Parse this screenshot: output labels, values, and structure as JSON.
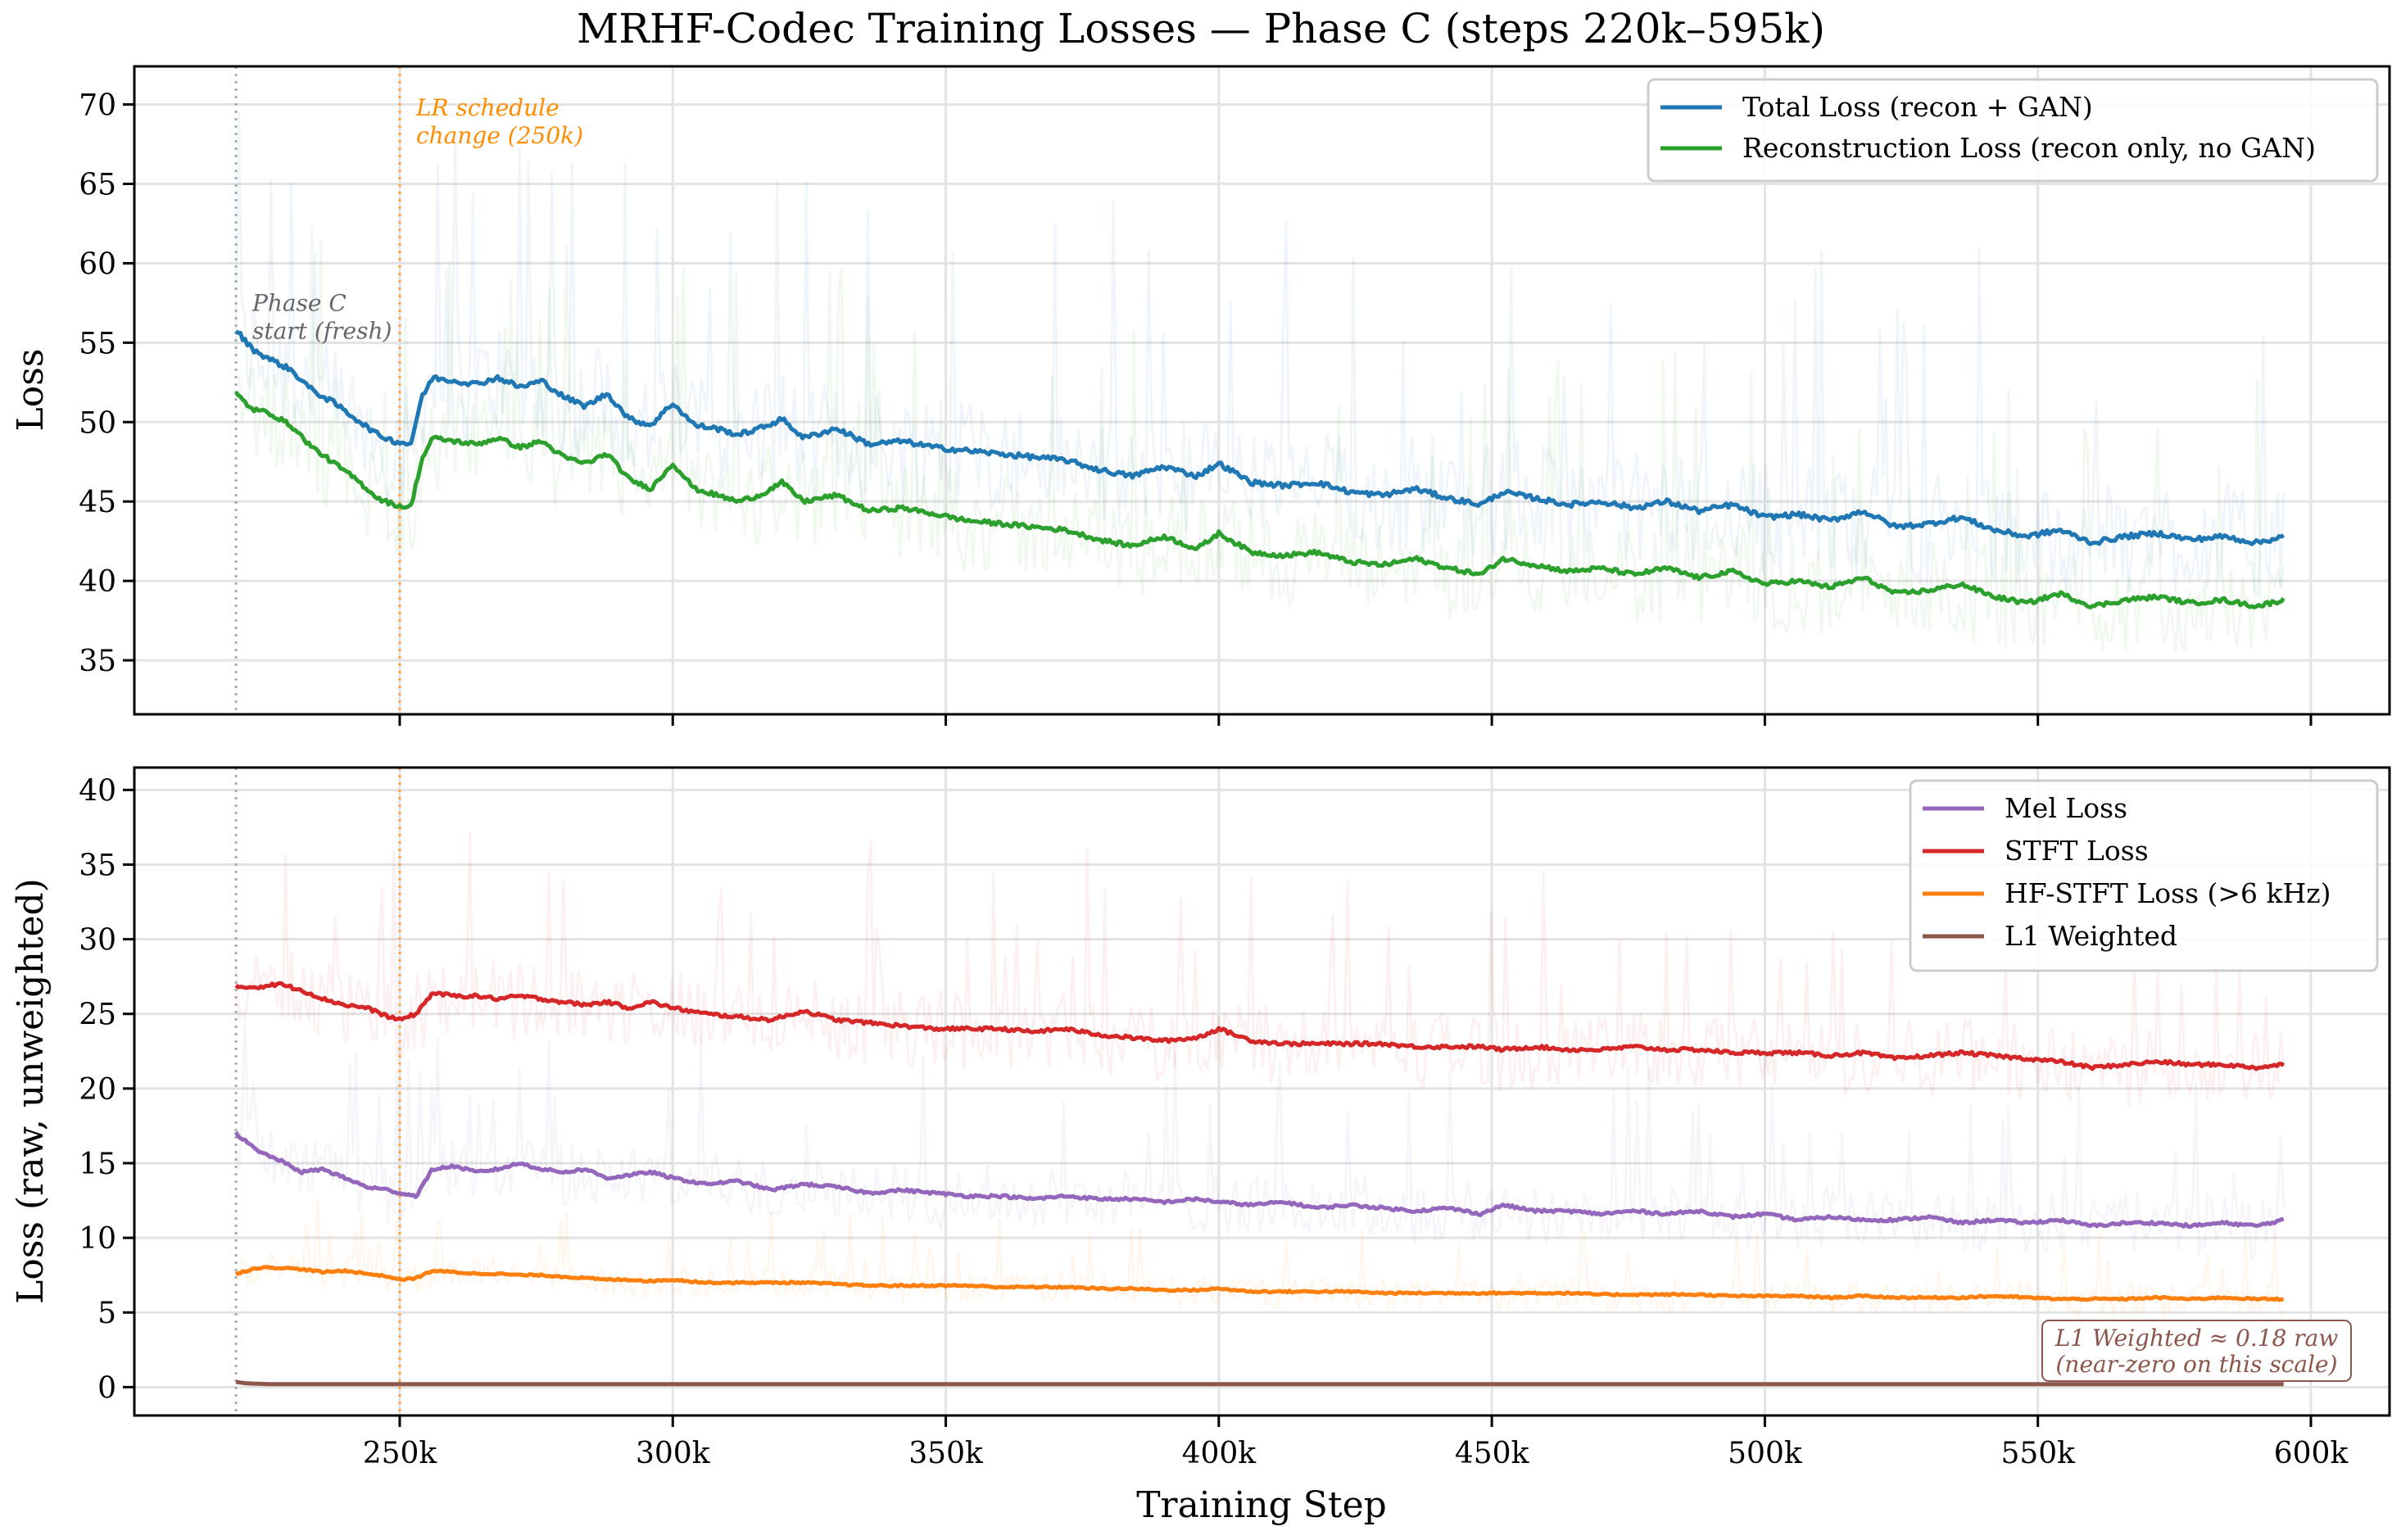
{
  "chart_data": [
    {
      "type": "line",
      "panel": "top",
      "title": "MRHF-Codec Training Losses — Phase C (steps 220k–595k)",
      "xlabel": "",
      "ylabel": "Loss",
      "xlim": [
        201.4,
        614.4
      ],
      "ylim": [
        31.6,
        72.4
      ],
      "x_unit": "k steps",
      "yticks": [
        35,
        40,
        45,
        50,
        55,
        60,
        65,
        70
      ],
      "xticks": [
        250,
        300,
        350,
        400,
        450,
        500,
        550,
        600
      ],
      "xtick_labels": [
        "250k",
        "300k",
        "350k",
        "400k",
        "450k",
        "500k",
        "550k",
        "600k"
      ],
      "grid": true,
      "legend_position": "top-right",
      "series": [
        {
          "name": "Total Loss (recon + GAN)",
          "color": "#1f77b4",
          "raw_spread": 7,
          "x": [
            220,
            223,
            226,
            230,
            234,
            238,
            242,
            246,
            249,
            252,
            254,
            256,
            260,
            264,
            268,
            272,
            276,
            280,
            284,
            288,
            292,
            296,
            300,
            304,
            308,
            312,
            316,
            320,
            324,
            330,
            336,
            342,
            348,
            354,
            360,
            366,
            372,
            378,
            384,
            390,
            396,
            400,
            406,
            412,
            418,
            424,
            430,
            436,
            442,
            448,
            452,
            458,
            464,
            470,
            476,
            482,
            488,
            494,
            500,
            506,
            512,
            518,
            524,
            530,
            536,
            542,
            548,
            554,
            560,
            566,
            572,
            578,
            584,
            590,
            595
          ],
          "values": [
            55.8,
            54.6,
            54.0,
            53.3,
            52.0,
            51.2,
            50.2,
            49.2,
            48.8,
            48.6,
            51.5,
            52.8,
            52.6,
            52.4,
            52.8,
            52.2,
            52.6,
            51.6,
            51.0,
            51.8,
            50.2,
            49.8,
            51.2,
            49.8,
            49.6,
            49.2,
            49.6,
            50.2,
            49.0,
            49.6,
            48.6,
            48.8,
            48.4,
            48.2,
            48.0,
            47.8,
            47.6,
            47.0,
            46.6,
            47.2,
            46.6,
            47.4,
            46.2,
            46.0,
            46.2,
            45.6,
            45.4,
            45.8,
            45.2,
            44.8,
            45.6,
            45.2,
            44.8,
            45.0,
            44.6,
            45.0,
            44.4,
            44.8,
            44.0,
            44.2,
            43.8,
            44.4,
            43.4,
            43.6,
            44.0,
            43.2,
            42.8,
            43.2,
            42.4,
            42.8,
            43.0,
            42.6,
            42.8,
            42.4,
            42.8
          ]
        },
        {
          "name": "Reconstruction Loss (recon only, no GAN)",
          "color": "#2ca02c",
          "raw_spread": 6,
          "x": [
            220,
            223,
            226,
            230,
            234,
            238,
            242,
            246,
            249,
            252,
            254,
            256,
            260,
            264,
            268,
            272,
            276,
            280,
            284,
            288,
            292,
            296,
            300,
            304,
            308,
            312,
            316,
            320,
            324,
            330,
            336,
            342,
            348,
            354,
            360,
            366,
            372,
            378,
            384,
            390,
            396,
            400,
            406,
            412,
            418,
            424,
            430,
            436,
            442,
            448,
            452,
            458,
            464,
            470,
            476,
            482,
            488,
            494,
            500,
            506,
            512,
            518,
            524,
            530,
            536,
            542,
            548,
            554,
            560,
            566,
            572,
            578,
            584,
            590,
            595
          ],
          "values": [
            51.8,
            50.8,
            50.6,
            49.8,
            48.4,
            47.4,
            46.4,
            45.2,
            44.8,
            44.6,
            47.6,
            49.0,
            48.8,
            48.6,
            49.0,
            48.4,
            48.8,
            47.8,
            47.4,
            48.0,
            46.4,
            45.8,
            47.4,
            45.8,
            45.4,
            45.0,
            45.4,
            46.2,
            45.0,
            45.4,
            44.4,
            44.6,
            44.2,
            43.8,
            43.6,
            43.4,
            43.2,
            42.6,
            42.2,
            42.8,
            42.0,
            43.0,
            41.8,
            41.6,
            41.8,
            41.2,
            41.0,
            41.4,
            40.8,
            40.4,
            41.4,
            41.0,
            40.6,
            40.8,
            40.4,
            40.8,
            40.2,
            40.6,
            39.8,
            40.0,
            39.6,
            40.2,
            39.2,
            39.4,
            39.8,
            39.0,
            38.6,
            39.2,
            38.4,
            38.8,
            39.0,
            38.6,
            38.8,
            38.4,
            38.8
          ]
        }
      ],
      "annotations": [
        {
          "text_lines": [
            "Phase C",
            "start (fresh)"
          ],
          "x": 220,
          "color": "#666666",
          "line_style": "dotted",
          "line_color": "#aaaaaa"
        },
        {
          "text_lines": [
            "LR schedule",
            "change (250k)"
          ],
          "x": 250,
          "color": "#ff8c00",
          "line_style": "dotted",
          "line_color": "#ff9f40"
        }
      ]
    },
    {
      "type": "line",
      "panel": "bottom",
      "title": "",
      "xlabel": "Training Step",
      "ylabel": "Loss (raw, unweighted)",
      "xlim": [
        201.4,
        614.4
      ],
      "ylim": [
        -1.9,
        41.5
      ],
      "x_unit": "k steps",
      "yticks": [
        0,
        5,
        10,
        15,
        20,
        25,
        30,
        35,
        40
      ],
      "xticks": [
        250,
        300,
        350,
        400,
        450,
        500,
        550,
        600
      ],
      "xtick_labels": [
        "250k",
        "300k",
        "350k",
        "400k",
        "450k",
        "500k",
        "550k",
        "600k"
      ],
      "grid": true,
      "legend_position": "top-right",
      "series": [
        {
          "name": "Mel Loss",
          "color": "#9467bd",
          "raw_spread": 4,
          "x": [
            220,
            224,
            228,
            232,
            236,
            240,
            244,
            248,
            250,
            253,
            256,
            260,
            264,
            268,
            272,
            276,
            280,
            284,
            288,
            292,
            296,
            300,
            306,
            312,
            318,
            324,
            330,
            336,
            342,
            348,
            354,
            360,
            366,
            372,
            378,
            384,
            390,
            396,
            400,
            406,
            412,
            418,
            424,
            430,
            436,
            442,
            448,
            452,
            458,
            464,
            470,
            476,
            482,
            488,
            494,
            500,
            506,
            512,
            518,
            524,
            530,
            536,
            542,
            548,
            554,
            560,
            566,
            572,
            578,
            584,
            590,
            595
          ],
          "values": [
            17.0,
            15.8,
            15.2,
            14.4,
            14.6,
            14.0,
            13.4,
            13.2,
            13.0,
            12.8,
            14.6,
            14.8,
            14.4,
            14.6,
            15.0,
            14.6,
            14.4,
            14.6,
            14.0,
            14.2,
            14.4,
            14.0,
            13.6,
            13.8,
            13.2,
            13.6,
            13.4,
            13.0,
            13.2,
            13.0,
            12.8,
            12.8,
            12.6,
            12.8,
            12.6,
            12.6,
            12.4,
            12.6,
            12.4,
            12.2,
            12.4,
            12.0,
            12.2,
            12.0,
            11.8,
            12.0,
            11.6,
            12.2,
            11.8,
            11.8,
            11.6,
            11.8,
            11.6,
            11.8,
            11.4,
            11.6,
            11.2,
            11.4,
            11.2,
            11.2,
            11.4,
            11.0,
            11.2,
            11.0,
            11.2,
            10.8,
            11.0,
            11.0,
            10.8,
            11.0,
            10.8,
            11.2
          ]
        },
        {
          "name": "STFT Loss",
          "color": "#d62728",
          "raw_spread": 5,
          "x": [
            220,
            224,
            228,
            232,
            236,
            240,
            244,
            248,
            250,
            253,
            256,
            260,
            264,
            268,
            272,
            276,
            280,
            284,
            288,
            292,
            296,
            300,
            306,
            312,
            318,
            324,
            330,
            336,
            342,
            348,
            354,
            360,
            366,
            372,
            378,
            384,
            390,
            396,
            400,
            406,
            412,
            418,
            424,
            430,
            436,
            442,
            448,
            452,
            458,
            464,
            470,
            476,
            482,
            488,
            494,
            500,
            506,
            512,
            518,
            524,
            530,
            536,
            542,
            548,
            554,
            560,
            566,
            572,
            578,
            584,
            590,
            595
          ],
          "values": [
            26.8,
            26.8,
            27.0,
            26.6,
            26.0,
            25.6,
            25.4,
            24.8,
            24.6,
            25.0,
            26.4,
            26.2,
            26.2,
            26.0,
            26.2,
            26.0,
            25.8,
            25.6,
            25.8,
            25.4,
            25.8,
            25.4,
            25.0,
            24.8,
            24.6,
            25.2,
            24.6,
            24.4,
            24.2,
            24.0,
            24.0,
            24.0,
            23.8,
            24.0,
            23.6,
            23.4,
            23.2,
            23.4,
            24.0,
            23.2,
            23.0,
            23.0,
            23.0,
            23.0,
            22.8,
            22.8,
            22.8,
            22.6,
            22.8,
            22.6,
            22.6,
            22.8,
            22.6,
            22.6,
            22.4,
            22.4,
            22.4,
            22.2,
            22.4,
            22.0,
            22.2,
            22.4,
            22.2,
            22.0,
            21.8,
            21.4,
            21.6,
            21.8,
            21.6,
            21.6,
            21.4,
            21.6
          ]
        },
        {
          "name": "HF-STFT Loss (>6 kHz)",
          "color": "#ff7f0e",
          "raw_spread": 2,
          "x": [
            220,
            224,
            228,
            232,
            236,
            240,
            244,
            248,
            250,
            253,
            256,
            260,
            264,
            268,
            272,
            276,
            280,
            284,
            288,
            292,
            296,
            300,
            306,
            312,
            318,
            324,
            330,
            336,
            342,
            348,
            354,
            360,
            366,
            372,
            378,
            384,
            390,
            396,
            400,
            406,
            412,
            418,
            424,
            430,
            436,
            442,
            448,
            452,
            458,
            464,
            470,
            476,
            482,
            488,
            494,
            500,
            506,
            512,
            518,
            524,
            530,
            536,
            542,
            548,
            554,
            560,
            566,
            572,
            578,
            584,
            590,
            595
          ],
          "values": [
            7.6,
            8.0,
            8.0,
            7.9,
            7.7,
            7.8,
            7.6,
            7.4,
            7.2,
            7.3,
            7.8,
            7.7,
            7.6,
            7.6,
            7.5,
            7.5,
            7.4,
            7.3,
            7.2,
            7.2,
            7.1,
            7.2,
            7.0,
            7.0,
            7.0,
            7.0,
            6.9,
            6.8,
            6.8,
            6.8,
            6.8,
            6.7,
            6.7,
            6.7,
            6.6,
            6.6,
            6.5,
            6.5,
            6.6,
            6.4,
            6.4,
            6.4,
            6.4,
            6.3,
            6.3,
            6.3,
            6.3,
            6.3,
            6.3,
            6.3,
            6.2,
            6.2,
            6.2,
            6.2,
            6.1,
            6.1,
            6.1,
            6.0,
            6.1,
            6.0,
            6.0,
            6.0,
            6.1,
            6.0,
            5.9,
            5.9,
            5.9,
            6.0,
            5.9,
            6.0,
            5.9,
            5.9
          ]
        },
        {
          "name": "L1 Weighted",
          "color": "#8c564b",
          "raw_spread": 0,
          "x": [
            220,
            222,
            226,
            240,
            300,
            400,
            500,
            595
          ],
          "values": [
            0.35,
            0.25,
            0.2,
            0.2,
            0.2,
            0.2,
            0.2,
            0.2
          ]
        }
      ],
      "annotations": [
        {
          "text_lines": [
            "L1 Weighted ≈ 0.18 raw",
            "(near-zero on this scale)"
          ],
          "color": "#8c564b",
          "boxed": true,
          "position": "bottom-right"
        }
      ],
      "vlines": [
        {
          "x": 220,
          "line_style": "dotted",
          "line_color": "#aaaaaa"
        },
        {
          "x": 250,
          "line_style": "dotted",
          "line_color": "#ff9f40"
        }
      ]
    }
  ]
}
